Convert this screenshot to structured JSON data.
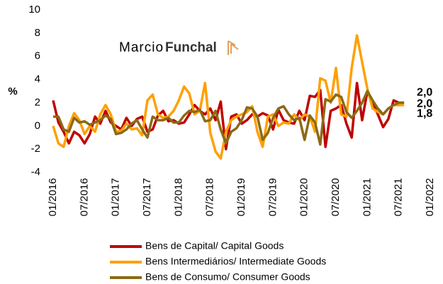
{
  "chart_data": {
    "type": "line",
    "y_label": "%",
    "annotation": {
      "first": "Marcio",
      "second": "Funchal"
    },
    "categories": [
      "01/2016",
      null,
      null,
      null,
      null,
      null,
      "07/2016",
      null,
      null,
      null,
      null,
      null,
      "01/2017",
      null,
      null,
      null,
      null,
      null,
      "07/2017",
      null,
      null,
      null,
      null,
      null,
      "01/2018",
      null,
      null,
      null,
      null,
      null,
      "07/2018",
      null,
      null,
      null,
      null,
      null,
      "01/2019",
      null,
      null,
      null,
      null,
      null,
      "07/2019",
      null,
      null,
      null,
      null,
      null,
      "01/2020",
      null,
      null,
      null,
      null,
      null,
      "07/2020",
      null,
      null,
      null,
      null,
      null,
      "01/2021",
      null,
      null,
      null,
      null,
      null,
      "07/2021",
      null,
      null,
      null,
      null,
      null,
      "01/2022"
    ],
    "ylim": [
      -4,
      10
    ],
    "yticks": [
      -4,
      -2,
      0,
      2,
      4,
      6,
      8,
      10
    ],
    "series": [
      {
        "name": "Bens de Capital/ Capital Goods",
        "color": "#c00000",
        "values": [
          2.2,
          0.3,
          -0.5,
          -1.5,
          -0.5,
          -0.8,
          -1.5,
          -0.7,
          0.8,
          0.2,
          1.3,
          0.3,
          0.0,
          -0.3,
          0.7,
          0.0,
          0.6,
          0.8,
          -0.5,
          -0.3,
          0.9,
          1.3,
          0.4,
          0.5,
          0.2,
          0.3,
          1.0,
          1.8,
          1.3,
          1.0,
          1.5,
          0.5,
          2.1,
          -2.0,
          0.8,
          1.0,
          0.2,
          0.5,
          1.0,
          0.8,
          1.1,
          0.9,
          -0.3,
          1.4,
          0.5,
          0.3,
          0.2,
          1.3,
          0.5,
          2.6,
          2.5,
          3.1,
          -1.8,
          1.3,
          1.5,
          1.8,
          0.2,
          -1.0,
          3.7,
          0.5,
          3.0,
          2.0,
          1.0,
          -0.1,
          0.6,
          2.2,
          2.0,
          2.0,
          null,
          null,
          null,
          null,
          null
        ],
        "value_labels": [
          null,
          null,
          null,
          null,
          null,
          null,
          null,
          null,
          null,
          null,
          null,
          null,
          null,
          null,
          null,
          null,
          null,
          null,
          null,
          null,
          null,
          null,
          null,
          null,
          null,
          null,
          null,
          null,
          null,
          null,
          null,
          null,
          null,
          null,
          null,
          null,
          null,
          null,
          null,
          null,
          null,
          null,
          null,
          null,
          null,
          null,
          null,
          null,
          null,
          null,
          null,
          null,
          null,
          null,
          null,
          null,
          null,
          null,
          null,
          null,
          null,
          null,
          null,
          null,
          null,
          null,
          null,
          "2,0",
          null,
          null,
          null,
          null,
          null
        ]
      },
      {
        "name": "Bens Intermediários/ Intermediate Goods",
        "color": "#ffa000",
        "values": [
          0.0,
          -1.5,
          -1.8,
          0.0,
          1.1,
          0.5,
          -0.7,
          0.0,
          -0.5,
          1.0,
          1.8,
          1.0,
          -0.5,
          -0.4,
          0.2,
          -0.3,
          -0.2,
          -0.8,
          2.2,
          2.7,
          1.0,
          0.7,
          0.8,
          1.3,
          2.2,
          3.4,
          2.8,
          1.0,
          1.3,
          3.7,
          -0.6,
          -2.2,
          -2.8,
          -0.5,
          0.5,
          0.8,
          1.0,
          1.2,
          1.7,
          -0.5,
          -1.8,
          0.8,
          1.0,
          0.0,
          0.3,
          0.2,
          1.0,
          0.5,
          1.0,
          0.8,
          -0.5,
          4.1,
          3.9,
          2.0,
          5.0,
          1.0,
          0.8,
          5.0,
          7.8,
          5.5,
          3.2,
          1.5,
          1.2,
          1.0,
          1.5,
          1.8,
          1.8,
          1.8,
          null,
          null,
          null,
          null,
          null
        ],
        "value_labels": [
          null,
          null,
          null,
          null,
          null,
          null,
          null,
          null,
          null,
          null,
          null,
          null,
          null,
          null,
          null,
          null,
          null,
          null,
          null,
          null,
          null,
          null,
          null,
          null,
          null,
          null,
          null,
          null,
          null,
          null,
          null,
          null,
          null,
          null,
          null,
          null,
          null,
          null,
          null,
          null,
          null,
          null,
          null,
          null,
          null,
          null,
          null,
          null,
          null,
          null,
          null,
          null,
          null,
          null,
          null,
          null,
          null,
          null,
          null,
          null,
          null,
          null,
          null,
          null,
          null,
          null,
          null,
          "1,8",
          null,
          null,
          null,
          null,
          null
        ]
      },
      {
        "name": "Bens de Consumo/ Consumer Goods",
        "color": "#8b6914",
        "values": [
          0.8,
          0.8,
          -0.3,
          -0.5,
          0.7,
          0.3,
          0.4,
          0.1,
          0.3,
          0.5,
          0.9,
          0.6,
          -0.7,
          -0.6,
          -0.3,
          0.2,
          0.5,
          -0.3,
          -1.0,
          0.8,
          0.5,
          0.5,
          0.7,
          0.3,
          0.3,
          0.9,
          1.3,
          1.2,
          1.4,
          0.4,
          0.5,
          1.3,
          -0.3,
          -1.5,
          -0.5,
          -0.2,
          0.5,
          1.6,
          1.5,
          0.8,
          -1.2,
          -0.6,
          0.7,
          1.5,
          1.7,
          1.0,
          0.5,
          0.7,
          -1.2,
          0.9,
          0.3,
          -1.6,
          2.3,
          2.1,
          2.7,
          2.5,
          1.2,
          0.7,
          1.3,
          2.0,
          3.0,
          2.2,
          1.5,
          1.0,
          1.5,
          1.8,
          2.0,
          2.0,
          null,
          null,
          null,
          null,
          null
        ],
        "value_labels": [
          null,
          null,
          null,
          null,
          null,
          null,
          null,
          null,
          null,
          null,
          null,
          null,
          null,
          null,
          null,
          null,
          null,
          null,
          null,
          null,
          null,
          null,
          null,
          null,
          null,
          null,
          null,
          null,
          null,
          null,
          null,
          null,
          null,
          null,
          null,
          null,
          null,
          null,
          null,
          null,
          null,
          null,
          null,
          null,
          null,
          null,
          null,
          null,
          null,
          null,
          null,
          null,
          null,
          null,
          null,
          null,
          null,
          null,
          null,
          null,
          null,
          null,
          null,
          null,
          null,
          null,
          null,
          "2,0",
          null,
          null,
          null,
          null,
          null
        ]
      }
    ]
  }
}
